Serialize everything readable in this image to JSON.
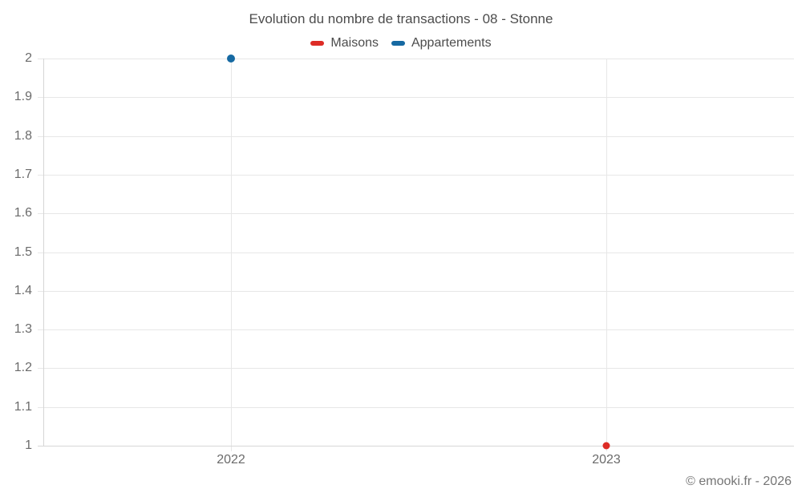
{
  "chart": {
    "title": "Evolution du nombre de transactions - 08 - Stonne",
    "footer": "© emooki.fr - 2026"
  },
  "chart_data": {
    "type": "scatter",
    "title": "Evolution du nombre de transactions - 08 - Stonne",
    "categories": [
      "2022",
      "2023"
    ],
    "series": [
      {
        "name": "Maisons",
        "color": "#dd2c26",
        "values": [
          null,
          1
        ]
      },
      {
        "name": "Appartements",
        "color": "#1669a2",
        "values": [
          2,
          null
        ]
      }
    ],
    "xlabel": "",
    "ylabel": "",
    "ylim": [
      1,
      2
    ],
    "y_tick_labels": [
      "2",
      "1.9",
      "1.8",
      "1.7",
      "1.6",
      "1.5",
      "1.4",
      "1.3",
      "1.2",
      "1.1",
      "1"
    ],
    "grid": true,
    "legend_position": "top",
    "grid_color": "#e7e7e7",
    "axis_color": "#d6d6d6"
  }
}
